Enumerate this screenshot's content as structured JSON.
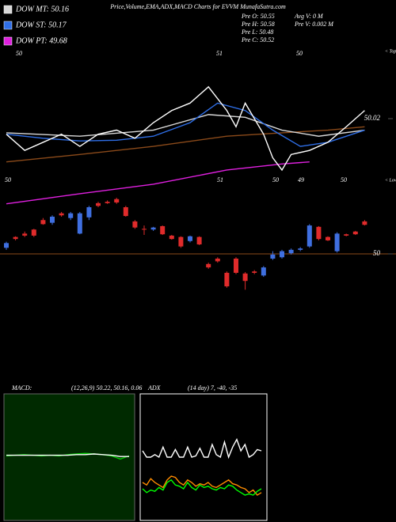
{
  "header": {
    "title": "Price,Volume,EMA,ADX,MACD Charts for EVVM MunafaSutra.com",
    "stats": [
      "Pre  O: 50.55",
      "Avg V: 0  M",
      "Pre  H: 50.58",
      "Pre  V: 0.002  M",
      "Pre  L: 50.48",
      "Pre  C: 50.52"
    ]
  },
  "chart_data": [
    {
      "type": "candlestick",
      "up_color": "#3f6fe0",
      "down_color": "#e02b2b",
      "hline": 50,
      "hline_color": "#8b4a1a",
      "ylim": [
        49.994,
        50.036
      ],
      "yticks": [
        50.02,
        50
      ],
      "annotations": [
        "50",
        "51",
        "50",
        "< Tops",
        "50",
        "51",
        "50",
        "49",
        "50",
        "< Lows"
      ],
      "open": [
        50.0009,
        50.0025,
        50.003,
        50.0036,
        50.005,
        50.0046,
        50.006,
        50.0053,
        50.003,
        50.0054,
        50.0075,
        50.0077,
        50.0081,
        50.0069,
        50.0048,
        50.0037,
        50.0036,
        50.0041,
        50.0027,
        50.0025,
        50.0019,
        50.0025,
        49.9985,
        49.9993,
        49.9972,
        49.9993,
        49.9971,
        49.9974,
        49.9968,
        49.9993,
        49.9995,
        50.0001,
        50.0006,
        50.0011,
        50.004,
        50.0025,
        50.0004,
        50.0029,
        50.0033,
        50.0048
      ],
      "close": [
        50.0016,
        50.0022,
        50.0027,
        50.0027,
        50.0044,
        50.0055,
        50.0057,
        50.006,
        50.006,
        50.0069,
        50.0071,
        50.0075,
        50.0076,
        50.0056,
        50.0039,
        50.0036,
        50.0039,
        50.0029,
        50.0022,
        50.0011,
        50.0026,
        50.0014,
        49.998,
        49.9989,
        49.9952,
        49.9972,
        49.996,
        49.9972,
        49.998,
        49.9999,
        50.0004,
        50.0006,
        50.0008,
        50.0042,
        50.0022,
        50.002,
        50.003,
        50.0027,
        50.0029,
        50.0043
      ],
      "high": [
        50.0018,
        50.0026,
        50.0033,
        50.0037,
        50.0053,
        50.0057,
        50.0062,
        50.0062,
        50.0062,
        50.0071,
        50.0077,
        50.0079,
        50.0083,
        50.0071,
        50.005,
        50.0042,
        50.004,
        50.0042,
        50.0028,
        50.0026,
        50.0027,
        50.0026,
        49.9987,
        49.9995,
        49.9974,
        49.9995,
        49.9973,
        49.9976,
        49.9982,
        50.0004,
        50.0006,
        50.0008,
        50.001,
        50.0044,
        50.0041,
        50.0026,
        50.0032,
        50.003,
        50.0034,
        50.005
      ],
      "low": [
        50.0006,
        50.002,
        50.0025,
        50.0025,
        50.0043,
        50.0043,
        50.0055,
        50.005,
        50.0029,
        50.005,
        50.0069,
        50.0074,
        50.0074,
        50.0055,
        50.0037,
        50.0028,
        50.0034,
        50.0028,
        50.0021,
        50.0009,
        50.0017,
        50.0013,
        49.9978,
        49.9987,
        49.995,
        49.997,
        49.9947,
        49.997,
        49.9966,
        49.9991,
        49.9993,
        49.9999,
        50.0004,
        50.0009,
        50.002,
        50.0019,
        50.0002,
        50.0026,
        50.0028,
        50.0042
      ],
      "series": [
        {
          "color": "#8b4a1a",
          "x": [
            0,
            8,
            16,
            24,
            30,
            35,
            39
          ],
          "values": [
            50.0136,
            50.0147,
            50.0159,
            50.0174,
            50.0179,
            50.0183,
            50.0188
          ]
        },
        {
          "name": "DOW MT: 50.16",
          "color": "#d8d8d8",
          "x": [
            0,
            8,
            16,
            22,
            26,
            30,
            34,
            39
          ],
          "values": [
            50.0179,
            50.0174,
            50.0183,
            50.0206,
            50.0202,
            50.0183,
            50.0174,
            50.0183
          ]
        },
        {
          "name": "DOW ST: 50.17",
          "color": "#2f6fe8",
          "x": [
            0,
            4,
            8,
            12,
            16,
            20,
            23,
            26,
            29,
            32,
            35,
            39
          ],
          "values": [
            50.0177,
            50.0171,
            50.0167,
            50.0168,
            50.0174,
            50.0194,
            50.0223,
            50.0212,
            50.0183,
            50.0159,
            50.0165,
            50.0183
          ]
        },
        {
          "name": "DOW PT: 49.68",
          "color": "#e020e0",
          "x": [
            0,
            8,
            16,
            24,
            30,
            33
          ],
          "values": [
            50.0074,
            50.0089,
            50.0103,
            50.0124,
            50.0133,
            50.0136
          ]
        },
        {
          "color": "#ffffff",
          "x": [
            0,
            2,
            4,
            6,
            8,
            10,
            12,
            14,
            16,
            18,
            20,
            22,
            24,
            25,
            26,
            28,
            29,
            30,
            31,
            33,
            35,
            37,
            39
          ],
          "values": [
            50.0177,
            50.0153,
            50.0165,
            50.0177,
            50.0159,
            50.0177,
            50.0183,
            50.0171,
            50.0194,
            50.0212,
            50.0223,
            50.0247,
            50.0212,
            50.0188,
            50.0223,
            50.0177,
            50.0142,
            50.0124,
            50.0147,
            50.0153,
            50.0165,
            50.0188,
            50.0212
          ]
        }
      ]
    },
    {
      "type": "line",
      "title": "MACD:",
      "subtitle": "(12,26,9) 50.22, 50.16, 0.06",
      "background": "#002a00",
      "ylim": [
        -1,
        1
      ],
      "x": [
        0,
        1,
        2,
        3,
        4,
        5,
        6,
        7,
        8,
        9,
        10,
        11,
        12,
        13,
        14
      ],
      "series": [
        {
          "color": "#00cc00",
          "values": [
            0.02,
            0.03,
            0.04,
            0.03,
            0.02,
            0.03,
            0.02,
            0.04,
            0.05,
            0.06,
            0.05,
            0.04,
            0.02,
            -0.03,
            0.02
          ]
        },
        {
          "color": "#ffffff",
          "values": [
            0.03,
            0.03,
            0.03,
            0.03,
            0.03,
            0.03,
            0.03,
            0.03,
            0.04,
            0.04,
            0.05,
            0.04,
            0.03,
            0.01,
            0.01
          ]
        }
      ]
    },
    {
      "type": "line",
      "title": "ADX",
      "subtitle": "(14 day) 7, -40, -35",
      "background": "#000000",
      "ylim": [
        0,
        100
      ],
      "x": [
        0,
        1,
        2,
        3,
        4,
        5,
        6,
        7,
        8,
        9,
        10,
        11,
        12,
        13,
        14,
        15,
        16,
        17,
        18,
        19,
        20,
        21,
        22,
        23,
        24,
        25,
        26,
        27,
        28,
        29
      ],
      "series": [
        {
          "color": "#ffffff",
          "values": [
            55,
            50,
            50,
            52,
            50,
            58,
            50,
            50,
            56,
            50,
            50,
            58,
            50,
            51,
            57,
            50,
            50,
            60,
            52,
            50,
            62,
            50,
            58,
            64,
            55,
            60,
            50,
            52,
            56,
            55
          ]
        },
        {
          "color": "#ff8c00",
          "values": [
            30,
            28,
            33,
            30,
            28,
            26,
            32,
            35,
            34,
            30,
            28,
            32,
            30,
            27,
            29,
            28,
            30,
            27,
            26,
            28,
            30,
            32,
            29,
            28,
            26,
            25,
            22,
            24,
            20,
            22
          ]
        },
        {
          "color": "#00ff00",
          "values": [
            25,
            22,
            24,
            23,
            26,
            24,
            30,
            32,
            28,
            27,
            25,
            30,
            26,
            24,
            28,
            26,
            27,
            25,
            24,
            26,
            25,
            28,
            27,
            24,
            22,
            20,
            21,
            20,
            23,
            25
          ]
        }
      ]
    }
  ]
}
